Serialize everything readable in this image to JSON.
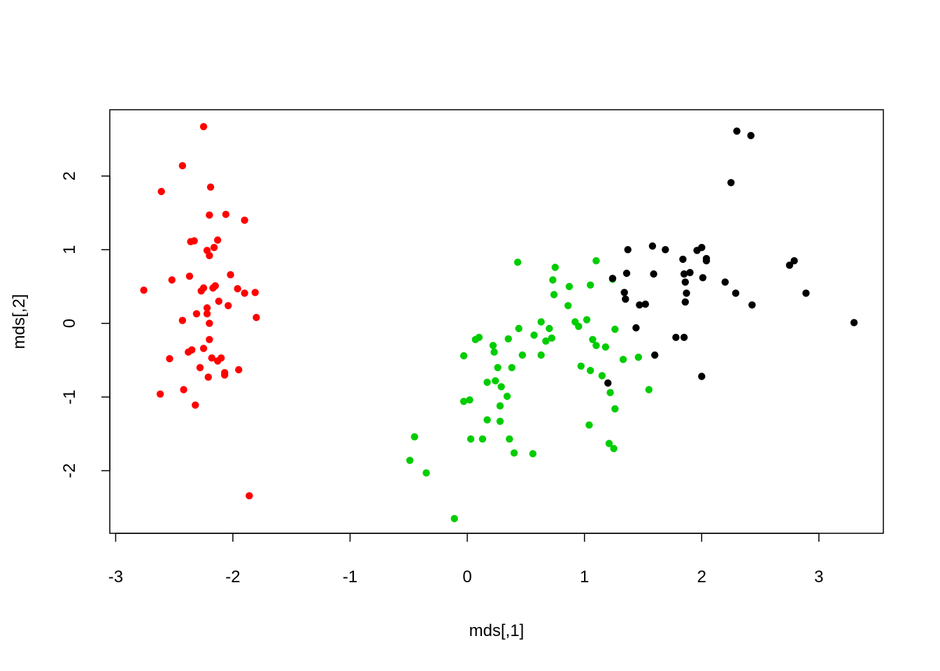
{
  "chart_data": {
    "type": "scatter",
    "title": "",
    "xlabel": "mds[,1]",
    "ylabel": "mds[,2]",
    "xlim": [
      -3.05,
      3.55
    ],
    "ylim": [
      -2.85,
      2.9
    ],
    "xticks": [
      -3,
      -2,
      -1,
      0,
      1,
      2,
      3
    ],
    "yticks": [
      -2,
      -1,
      0,
      1,
      2
    ],
    "grid": false,
    "legend": "none",
    "series": [
      {
        "color": "#ff0000",
        "points": [
          [
            -2.25,
            2.67
          ],
          [
            -2.43,
            2.14
          ],
          [
            -2.61,
            1.79
          ],
          [
            -2.19,
            1.85
          ],
          [
            -2.2,
            1.47
          ],
          [
            -2.06,
            1.48
          ],
          [
            -1.9,
            1.4
          ],
          [
            -2.36,
            1.11
          ],
          [
            -2.33,
            1.12
          ],
          [
            -2.13,
            1.13
          ],
          [
            -2.16,
            1.03
          ],
          [
            -2.22,
            0.99
          ],
          [
            -2.2,
            0.92
          ],
          [
            -2.37,
            0.64
          ],
          [
            -2.02,
            0.66
          ],
          [
            -2.52,
            0.59
          ],
          [
            -2.76,
            0.45
          ],
          [
            -2.27,
            0.44
          ],
          [
            -2.25,
            0.48
          ],
          [
            -2.17,
            0.48
          ],
          [
            -2.15,
            0.51
          ],
          [
            -1.96,
            0.47
          ],
          [
            -1.9,
            0.41
          ],
          [
            -1.81,
            0.42
          ],
          [
            -2.12,
            0.3
          ],
          [
            -2.04,
            0.24
          ],
          [
            -2.22,
            0.21
          ],
          [
            -2.22,
            0.13
          ],
          [
            -2.31,
            0.13
          ],
          [
            -1.8,
            0.08
          ],
          [
            -2.43,
            0.04
          ],
          [
            -2.2,
            0.0
          ],
          [
            -2.25,
            -0.34
          ],
          [
            -2.35,
            -0.36
          ],
          [
            -2.38,
            -0.39
          ],
          [
            -2.2,
            -0.22
          ],
          [
            -2.54,
            -0.48
          ],
          [
            -2.18,
            -0.47
          ],
          [
            -2.1,
            -0.47
          ],
          [
            -2.13,
            -0.51
          ],
          [
            -1.95,
            -0.63
          ],
          [
            -2.28,
            -0.6
          ],
          [
            -2.07,
            -0.67
          ],
          [
            -2.07,
            -0.7
          ],
          [
            -2.21,
            -0.73
          ],
          [
            -2.42,
            -0.9
          ],
          [
            -2.62,
            -0.96
          ],
          [
            -2.32,
            -1.11
          ],
          [
            -1.86,
            -2.34
          ]
        ]
      },
      {
        "color": "#00cd00",
        "points": [
          [
            1.1,
            0.85
          ],
          [
            0.43,
            0.83
          ],
          [
            0.75,
            0.76
          ],
          [
            0.73,
            0.59
          ],
          [
            0.87,
            0.5
          ],
          [
            1.05,
            0.52
          ],
          [
            0.74,
            0.39
          ],
          [
            1.24,
            0.6
          ],
          [
            0.86,
            0.24
          ],
          [
            1.02,
            0.05
          ],
          [
            0.92,
            0.02
          ],
          [
            0.95,
            -0.04
          ],
          [
            0.63,
            0.02
          ],
          [
            0.7,
            -0.07
          ],
          [
            0.44,
            -0.07
          ],
          [
            1.26,
            -0.08
          ],
          [
            0.57,
            -0.16
          ],
          [
            0.72,
            -0.2
          ],
          [
            0.67,
            -0.24
          ],
          [
            0.35,
            -0.21
          ],
          [
            1.07,
            -0.22
          ],
          [
            1.1,
            -0.3
          ],
          [
            1.18,
            -0.32
          ],
          [
            0.22,
            -0.3
          ],
          [
            0.1,
            -0.19
          ],
          [
            0.07,
            -0.22
          ],
          [
            0.23,
            -0.39
          ],
          [
            0.47,
            -0.43
          ],
          [
            0.63,
            -0.43
          ],
          [
            1.46,
            -0.46
          ],
          [
            1.33,
            -0.49
          ],
          [
            -0.03,
            -0.44
          ],
          [
            0.26,
            -0.6
          ],
          [
            0.38,
            -0.6
          ],
          [
            0.97,
            -0.58
          ],
          [
            1.05,
            -0.64
          ],
          [
            1.15,
            -0.71
          ],
          [
            0.24,
            -0.78
          ],
          [
            0.29,
            -0.86
          ],
          [
            0.17,
            -0.8
          ],
          [
            1.22,
            -0.94
          ],
          [
            1.55,
            -0.9
          ],
          [
            0.34,
            -0.99
          ],
          [
            0.02,
            -1.04
          ],
          [
            -0.03,
            -1.06
          ],
          [
            0.28,
            -1.12
          ],
          [
            1.26,
            -1.16
          ],
          [
            0.17,
            -1.31
          ],
          [
            0.28,
            -1.33
          ],
          [
            1.04,
            -1.38
          ],
          [
            -0.45,
            -1.54
          ],
          [
            0.13,
            -1.57
          ],
          [
            0.03,
            -1.57
          ],
          [
            0.36,
            -1.57
          ],
          [
            1.21,
            -1.63
          ],
          [
            1.25,
            -1.7
          ],
          [
            0.4,
            -1.76
          ],
          [
            0.56,
            -1.77
          ],
          [
            -0.49,
            -1.86
          ],
          [
            -0.35,
            -2.03
          ],
          [
            -0.11,
            -2.65
          ]
        ]
      },
      {
        "color": "#000000",
        "points": [
          [
            2.3,
            2.61
          ],
          [
            2.42,
            2.55
          ],
          [
            2.25,
            1.91
          ],
          [
            1.58,
            1.05
          ],
          [
            1.69,
            1.0
          ],
          [
            1.37,
            1.0
          ],
          [
            1.96,
            0.99
          ],
          [
            2.0,
            1.03
          ],
          [
            2.04,
            0.88
          ],
          [
            2.04,
            0.85
          ],
          [
            1.84,
            0.87
          ],
          [
            2.79,
            0.85
          ],
          [
            2.75,
            0.79
          ],
          [
            1.59,
            0.67
          ],
          [
            1.36,
            0.68
          ],
          [
            1.85,
            0.67
          ],
          [
            1.9,
            0.69
          ],
          [
            1.24,
            0.61
          ],
          [
            2.01,
            0.62
          ],
          [
            2.2,
            0.56
          ],
          [
            1.86,
            0.56
          ],
          [
            2.89,
            0.41
          ],
          [
            2.29,
            0.41
          ],
          [
            1.34,
            0.42
          ],
          [
            1.87,
            0.41
          ],
          [
            1.35,
            0.33
          ],
          [
            1.86,
            0.29
          ],
          [
            1.52,
            0.26
          ],
          [
            1.47,
            0.25
          ],
          [
            2.43,
            0.25
          ],
          [
            3.3,
            0.01
          ],
          [
            1.44,
            -0.06
          ],
          [
            1.78,
            -0.19
          ],
          [
            1.85,
            -0.19
          ],
          [
            1.6,
            -0.43
          ],
          [
            2.0,
            -0.72
          ],
          [
            1.2,
            -0.81
          ]
        ]
      }
    ]
  }
}
